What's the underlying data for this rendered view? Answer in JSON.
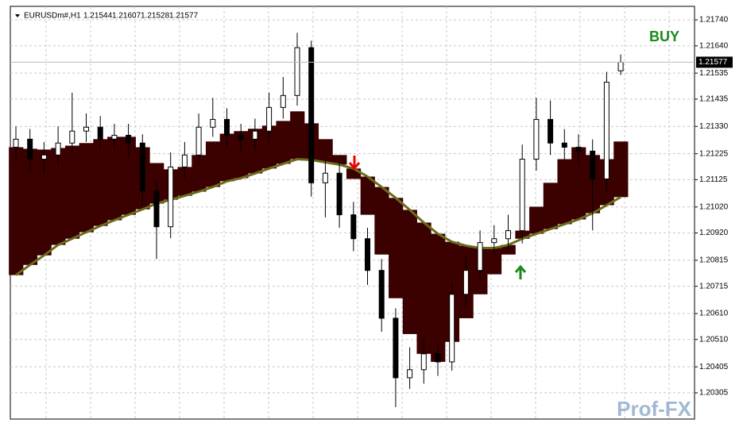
{
  "chart_data": {
    "type": "candlestick",
    "symbol": "EURUSDm#,H1",
    "signal": "BUY",
    "watermark": "Prof-FX",
    "open": [
      1.2125,
      1.21281,
      1.21204,
      1.2122,
      1.21266,
      1.21312,
      1.21327,
      1.21281,
      1.21296,
      1.21266,
      1.21082,
      1.20944,
      1.21174,
      1.2122,
      1.21327,
      1.21357,
      1.21296,
      1.21281,
      1.21312,
      1.21403,
      1.21449,
      1.21633,
      1.21113,
      1.2115,
      1.2099,
      1.20898,
      1.20776,
      1.20592,
      1.20363,
      1.20394,
      1.20455,
      1.20424,
      1.20684,
      1.20776,
      1.20883,
      1.20898,
      1.20929,
      1.21204,
      1.21357,
      1.21266,
      1.2125,
      1.21235,
      1.21128,
      1.21544
    ],
    "high": [
      1.2133,
      1.2132,
      1.2127,
      1.2133,
      1.2146,
      1.2138,
      1.2137,
      1.2134,
      1.2134,
      1.213,
      1.2112,
      1.2123,
      1.2127,
      1.2138,
      1.2144,
      1.214,
      1.2134,
      1.2136,
      1.2146,
      1.2152,
      1.2169,
      1.2166,
      1.212,
      1.2119,
      1.2104,
      1.2094,
      1.2082,
      1.2063,
      1.2048,
      1.2051,
      1.2049,
      1.2073,
      1.2083,
      1.2093,
      1.2095,
      1.2099,
      1.2126,
      1.2144,
      1.2143,
      1.2132,
      1.213,
      1.2128,
      1.2154,
      1.21607
    ],
    "low": [
      1.212,
      1.2116,
      1.2115,
      1.2118,
      1.2123,
      1.2127,
      1.2124,
      1.2124,
      1.2121,
      1.2103,
      1.2082,
      1.209,
      1.2113,
      1.2118,
      1.2129,
      1.2125,
      1.2123,
      1.2124,
      1.2127,
      1.2136,
      1.2141,
      1.2106,
      1.2098,
      1.2094,
      1.2085,
      1.2072,
      1.2054,
      1.2025,
      1.2032,
      1.2034,
      1.2037,
      1.2039,
      1.2064,
      1.2074,
      1.2084,
      1.2085,
      1.2088,
      1.2116,
      1.2122,
      1.212,
      1.2118,
      1.2093,
      1.2108,
      1.21528
    ],
    "close": [
      1.21281,
      1.21204,
      1.2122,
      1.21266,
      1.21312,
      1.21327,
      1.21281,
      1.21296,
      1.21266,
      1.21082,
      1.20944,
      1.21174,
      1.2122,
      1.21327,
      1.21357,
      1.21296,
      1.21281,
      1.21312,
      1.21403,
      1.21449,
      1.21633,
      1.21113,
      1.2115,
      1.2099,
      1.20898,
      1.20776,
      1.20592,
      1.20363,
      1.20394,
      1.20455,
      1.20424,
      1.20684,
      1.20776,
      1.20883,
      1.20898,
      1.20929,
      1.21204,
      1.21357,
      1.21266,
      1.2125,
      1.21235,
      1.21128,
      1.215,
      1.21577
    ],
    "fast_ma": {
      "color": "#3b0000",
      "values": [
        1.2125,
        1.21244,
        1.21241,
        1.21247,
        1.21256,
        1.21266,
        1.21281,
        1.2129,
        1.2129,
        1.2125,
        1.21189,
        1.21165,
        1.21174,
        1.2122,
        1.21272,
        1.21302,
        1.21312,
        1.21321,
        1.21333,
        1.21351,
        1.21388,
        1.21342,
        1.21281,
        1.2122,
        1.21128,
        1.2099,
        1.20837,
        1.20669,
        1.20531,
        1.20455,
        1.20424,
        1.20501,
        1.20592,
        1.20684,
        1.20761,
        1.20837,
        1.20929,
        1.21021,
        1.21113,
        1.21204,
        1.2125,
        1.2122,
        1.21204,
        1.21272
      ]
    },
    "slow_ma": {
      "color": "#6b6b1a",
      "values": [
        1.20758,
        1.20797,
        1.20834,
        1.20874,
        1.20898,
        1.20923,
        1.20947,
        1.20969,
        1.2099,
        1.21011,
        1.21033,
        1.21048,
        1.21063,
        1.21079,
        1.21097,
        1.21119,
        1.21131,
        1.21149,
        1.21168,
        1.21186,
        1.21204,
        1.21201,
        1.21192,
        1.21183,
        1.21168,
        1.21137,
        1.21097,
        1.21055,
        1.21009,
        1.2096,
        1.20917,
        1.20886,
        1.20871,
        1.20862,
        1.20862,
        1.20874,
        1.20898,
        1.20917,
        1.20935,
        1.20954,
        1.20972,
        1.20996,
        1.21027,
        1.21058
      ]
    },
    "ylim": [
      1.20204,
      1.21792
    ],
    "yticks": [
      {
        "value": 1.2174,
        "label": "1.21740"
      },
      {
        "value": 1.2164,
        "label": "1.21640"
      },
      1.21535,
      {
        "value": 1.21435,
        "label": "1.21435"
      },
      {
        "value": 1.2133,
        "label": "1.21330"
      },
      1.21225,
      1.21125,
      {
        "value": 1.2102,
        "label": "1.21020"
      },
      {
        "value": 1.2092,
        "label": "1.20920"
      },
      1.20815,
      1.20715,
      {
        "value": 1.2061,
        "label": "1.20610"
      },
      {
        "value": 1.2051,
        "label": "1.20510"
      },
      1.20405,
      1.20305
    ],
    "grid": true
  }
}
